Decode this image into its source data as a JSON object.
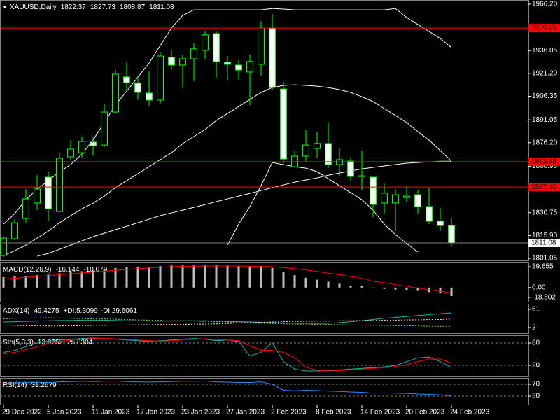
{
  "chart_data": [
    {
      "type": "candlestick",
      "title": "XAUUSD,Daily",
      "categories": [
        "29 Dec 2022",
        null,
        null,
        null,
        "5 Jan 2023",
        null,
        null,
        null,
        "11 Jan 2023",
        null,
        null,
        null,
        "17 Jan 2023",
        null,
        null,
        null,
        "23 Jan 2023",
        null,
        null,
        null,
        "27 Jan 2023",
        null,
        null,
        null,
        "2 Feb 2023",
        null,
        null,
        null,
        "8 Feb 2023",
        null,
        null,
        null,
        "14 Feb 2023",
        null,
        null,
        null,
        "20 Feb 2023",
        null,
        null,
        null,
        "24 Feb 2023"
      ],
      "open": [
        1802.9,
        1813.8,
        1827.0,
        1837.0,
        1853.8,
        1831.5,
        1867.0,
        1869.7,
        1876.6,
        1874.7,
        1896.1,
        1918.9,
        1914.8,
        1908.4,
        1903.9,
        1931.6,
        1926.6,
        1930.7,
        1936.2,
        1947.1,
        1928.4,
        1926.6,
        1922.1,
        1927.1,
        1950.7,
        1911.1,
        1860.6,
        1867.5,
        1872.5,
        1875.7,
        1862.0,
        1864.3,
        1854.3,
        1853.8,
        1837.0,
        1837.0,
        1840.6,
        1842.4,
        1834.7,
        1825.2,
        1822.37
      ],
      "high": [
        1815.5,
        1826.5,
        1846.1,
        1855.2,
        1857.5,
        1869.7,
        1877.9,
        1880.2,
        1880.2,
        1901.6,
        1923.4,
        1928.9,
        1919.8,
        1922.5,
        1934.8,
        1936.2,
        1933.4,
        1940.7,
        1948.5,
        1948.5,
        1932.5,
        1929.8,
        1933.4,
        1955.3,
        1959.8,
        1915.7,
        1871.1,
        1884.3,
        1883.4,
        1889.3,
        1872.5,
        1866.6,
        1871.1,
        1853.8,
        1849.7,
        1846.1,
        1847.9,
        1845.2,
        1847.0,
        1833.8,
        1827.73
      ],
      "low": [
        1801.9,
        1812.9,
        1824.2,
        1832.4,
        1825.6,
        1831.1,
        1865.2,
        1866.6,
        1867.9,
        1873.4,
        1895.2,
        1909.8,
        1904.3,
        1899.8,
        1901.6,
        1923.4,
        1912.0,
        1916.2,
        1930.2,
        1918.0,
        1916.6,
        1917.1,
        1900.7,
        1919.8,
        1910.7,
        1862.9,
        1860.6,
        1864.3,
        1866.1,
        1859.7,
        1854.3,
        1851.5,
        1845.2,
        1827.9,
        1830.2,
        1818.8,
        1837.9,
        1830.2,
        1823.3,
        1818.8,
        1808.87
      ],
      "close": [
        1814.2,
        1824.2,
        1839.7,
        1846.1,
        1833.3,
        1866.1,
        1872.0,
        1877.0,
        1874.3,
        1896.1,
        1920.7,
        1915.2,
        1908.9,
        1903.9,
        1932.5,
        1926.6,
        1930.7,
        1937.1,
        1946.2,
        1928.9,
        1927.1,
        1923.4,
        1928.9,
        1950.7,
        1912.0,
        1865.6,
        1867.5,
        1874.7,
        1875.7,
        1862.0,
        1865.2,
        1854.3,
        1854.7,
        1836.1,
        1843.4,
        1842.4,
        1841.5,
        1834.7,
        1825.2,
        1822.4,
        1811.08
      ],
      "lines": [
        {
          "color": "#ffffff",
          "values": [
            1823.3,
            1830.1,
            1839.2,
            1846.0,
            1851.5,
            1857.4,
            1862.0,
            1868.8,
            1877.9,
            1889.3,
            1900.6,
            1909.7,
            1918.8,
            1927.9,
            1939.3,
            1950.7,
            1958.9,
            1962.5,
            1962.5,
            1962.5,
            1962.5,
            1962.5,
            1962.5,
            1962.5,
            1963.4,
            1963.0,
            1962.5,
            1962.5,
            1962.5,
            1962.5,
            1962.5,
            1962.5,
            1962.5,
            1962.5,
            1962.5,
            1963.4,
            1957.5,
            1953.0,
            1948.4,
            1943.9,
            1938.0
          ]
        },
        {
          "color": "#ffffff",
          "values": [
            1802.8,
            1806.0,
            1809.6,
            1814.2,
            1818.7,
            1824.2,
            1828.8,
            1833.3,
            1836.9,
            1841.5,
            1847.0,
            1851.5,
            1856.1,
            1860.6,
            1865.2,
            1869.7,
            1875.6,
            1880.2,
            1884.7,
            1890.6,
            1895.2,
            1899.7,
            1904.3,
            1908.8,
            1912.0,
            1913.4,
            1913.8,
            1913.4,
            1912.9,
            1912.0,
            1910.7,
            1908.8,
            1906.1,
            1902.9,
            1898.4,
            1893.8,
            1889.3,
            1883.4,
            1877.9,
            1871.1,
            1864.2
          ]
        },
        {
          "color": "#ffffff",
          "values": [
            null,
            null,
            null,
            null,
            null,
            null,
            null,
            null,
            null,
            null,
            null,
            null,
            null,
            null,
            null,
            null,
            null,
            null,
            null,
            null,
            1809.7,
            1823.3,
            1834.7,
            1848.3,
            1863.3,
            1862.0,
            1860.6,
            1859.7,
            1857.4,
            1852.9,
            1848.3,
            1843.8,
            1839.2,
            1832.4,
            1823.3,
            1816.5,
            1810.6,
            1805.1,
            null,
            null,
            null
          ]
        },
        {
          "color": "#ffffff",
          "values": [
            null,
            null,
            null,
            1802.4,
            1804.2,
            1806.9,
            1809.6,
            1812.4,
            1815.1,
            1817.4,
            1819.7,
            1821.9,
            1824.2,
            1826.5,
            1828.8,
            1830.6,
            1832.4,
            1834.2,
            1836.0,
            1837.9,
            1839.7,
            1841.5,
            1843.3,
            1845.1,
            1847.0,
            1848.8,
            1850.6,
            1852.0,
            1853.3,
            1855.1,
            1856.5,
            1857.9,
            1859.2,
            1860.2,
            1861.1,
            1862.0,
            1862.9,
            1863.3,
            1863.8,
            1864.2,
            1864.2
          ]
        }
      ],
      "levels": [
        1950.66,
        1863.88,
        {
          "value": 1847.4,
          "label": "1847.40"
        }
      ],
      "level_color": "#ff0000",
      "bull_color": "#000000",
      "bear_color": "#ffffff",
      "wick_color": "#00ff00",
      "ylim": [
        1799.7,
        1968.9
      ],
      "yticks": [
        {
          "value": 1966.2,
          "label": "1966.20"
        },
        1936.05,
        {
          "value": 1921.2,
          "label": "1921.20"
        },
        1906.35,
        1891.05,
        {
          "value": 1876.2,
          "label": "1876.20"
        },
        {
          "value": 1860.9,
          "label": "1860.90"
        },
        1830.75,
        {
          "value": 1815.9,
          "label": "1815.90"
        },
        1801.05
      ]
    },
    {
      "type": "macd",
      "title": "MACD(12,26,9)",
      "series": [
        {
          "color": "#c0c0c0",
          "values": [
            19.8,
            21,
            22.3,
            23.5,
            24.8,
            27.3,
            29.7,
            31,
            32.2,
            34.7,
            37.2,
            38.4,
            39.7,
            39.7,
            40.9,
            42.1,
            42.1,
            42.1,
            43.4,
            43.4,
            42.1,
            40.9,
            39.7,
            40.9,
            37.2,
            29.7,
            23.5,
            18.6,
            14.9,
            11.2,
            7.4,
            3.7,
            2.5,
            -1.2,
            -2.5,
            -3.7,
            -5,
            -6.2,
            -8.7,
            -11.2,
            -16.144
          ]
        },
        {
          "color": "#ff0000",
          "values": [
            16.1,
            17.7,
            19.4,
            21.0,
            22.6,
            24.3,
            26.0,
            27.6,
            29.3,
            31.0,
            32.6,
            34.2,
            35.9,
            37.2,
            38.5,
            39.7,
            40.1,
            40.5,
            40.9,
            41.0,
            41.0,
            40.9,
            40.5,
            40.1,
            39.7,
            37.8,
            35.9,
            33.4,
            30.5,
            27.4,
            24.2,
            20.9,
            17.8,
            12,
            9,
            5.5,
            2.5,
            -1,
            -4.2,
            -7.2,
            -10.079
          ]
        }
      ],
      "ylim": [
        -26.8,
        47.6
      ],
      "yticks": [
        39.655,
        {
          "value": 0,
          "label": "0.00"
        },
        -18.802
      ]
    },
    {
      "type": "line",
      "title": "ADX(14)",
      "series": [
        {
          "color": "#20b2aa",
          "values": [
            20,
            21,
            22,
            23,
            24,
            25,
            25,
            26,
            26,
            26,
            25,
            24,
            24,
            23,
            23,
            23,
            24,
            24,
            24,
            23,
            22,
            21,
            20,
            19,
            18,
            17,
            16,
            16,
            15,
            16,
            18,
            21,
            24,
            28,
            32,
            35,
            38,
            41,
            44,
            47,
            49.4275
          ]
        },
        {
          "name": "+DI:",
          "color": "#9acd32",
          "dashed": true,
          "values": [
            30,
            32,
            33,
            33,
            34,
            33,
            32,
            31,
            30,
            30,
            29,
            28,
            27,
            26,
            25,
            24,
            24,
            23,
            22,
            21,
            20,
            18,
            17,
            16,
            15,
            14,
            13,
            13,
            12,
            12,
            11,
            10,
            10,
            9,
            9,
            8,
            8,
            7,
            6,
            6,
            5.3099
          ]
        },
        {
          "name": "-DI:",
          "color": "#f5deb3",
          "dashed": true,
          "values": [
            10,
            9,
            8,
            8,
            7,
            7,
            8,
            8,
            9,
            9,
            10,
            10,
            11,
            11,
            12,
            12,
            12,
            13,
            13,
            14,
            15,
            17,
            18,
            19,
            20,
            21,
            22,
            22,
            23,
            23,
            24,
            24,
            25,
            25,
            26,
            26,
            27,
            27,
            28,
            28,
            29.6061
          ]
        }
      ],
      "ylim": [
        -16.2,
        79.2
      ],
      "yticks": [
        61,
        2
      ]
    },
    {
      "type": "line",
      "title": "Sto(5,3,3)",
      "series": [
        {
          "color": "#20b2aa",
          "values": [
            55,
            60,
            70,
            80,
            85,
            88,
            90,
            92,
            93,
            92,
            90,
            88,
            86,
            84,
            86,
            88,
            90,
            92,
            90,
            86,
            88,
            84,
            45,
            55,
            80,
            30,
            10,
            5,
            5,
            6,
            8,
            10,
            12,
            14,
            16,
            20,
            30,
            40,
            42,
            30,
            13.6752
          ]
        },
        {
          "color": "#ff0000",
          "values": [
            50,
            55,
            62,
            70,
            78,
            84,
            88,
            90,
            92,
            92,
            91,
            90,
            88,
            86,
            85,
            86,
            88,
            90,
            91,
            89,
            88,
            86,
            72,
            61,
            60,
            55,
            40,
            15,
            7,
            5,
            6,
            8,
            10,
            12,
            14,
            17,
            22,
            30,
            37,
            37,
            25.8304
          ]
        }
      ],
      "ylim": [
        -8.1,
        100.6
      ],
      "yticks": [
        80,
        20
      ],
      "grid": true
    },
    {
      "type": "line",
      "title": "RSI(14)",
      "series": [
        {
          "color": "#1e90ff",
          "values": [
            72,
            74,
            76,
            77,
            75,
            78,
            79,
            80,
            79,
            80,
            81,
            79,
            78,
            77,
            78,
            79,
            80,
            80,
            81,
            78,
            77,
            76,
            76,
            78,
            70,
            50,
            48,
            50,
            49,
            47,
            46,
            44,
            43,
            40,
            41,
            40,
            39,
            37,
            36,
            34,
            31.2679
          ]
        }
      ],
      "ylim": [
        1.8,
        91.2
      ],
      "yticks": [
        70,
        30
      ],
      "grid": true
    }
  ]
}
